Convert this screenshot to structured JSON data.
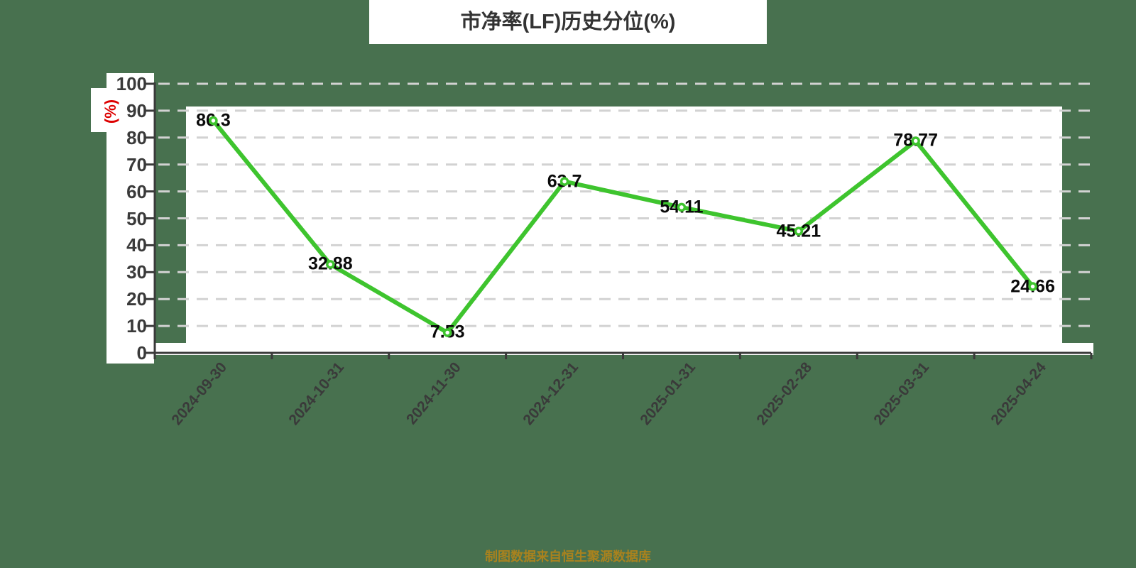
{
  "page": {
    "title": "市净率(LF)历史分位(%)",
    "y_axis_unit": "(%)",
    "footer_note": "制图数据来自恒生聚源数据库"
  },
  "colors": {
    "background": "#48714F",
    "panel": "#FFFFFF",
    "line": "#3EC42E",
    "grid": "#D2D2D2",
    "axis": "#3A3A3A",
    "title": "#333333",
    "data_label": "#0A0A0A",
    "unit_label": "#DD0000",
    "footer": "#A9821E"
  },
  "chart_data": {
    "type": "line",
    "title": "市净率(LF)历史分位(%)",
    "categories": [
      "2024-09-30",
      "2024-10-31",
      "2024-11-30",
      "2024-12-31",
      "2025-01-31",
      "2025-02-28",
      "2025-03-31",
      "2025-04-24"
    ],
    "values": [
      86.3,
      32.88,
      7.53,
      63.7,
      54.11,
      45.21,
      78.77,
      24.66
    ],
    "xlabel": "",
    "ylabel": "(%)",
    "ylim": [
      0,
      100
    ],
    "ytick_step": 10,
    "yticks": [
      0,
      10,
      20,
      30,
      40,
      50,
      60,
      70,
      80,
      90,
      100
    ],
    "grid_style": "horizontal dashed",
    "legend": "none",
    "x_label_rotation_deg": -50,
    "point_style": "white-filled circle with green ring",
    "data_labels_shown": true
  }
}
